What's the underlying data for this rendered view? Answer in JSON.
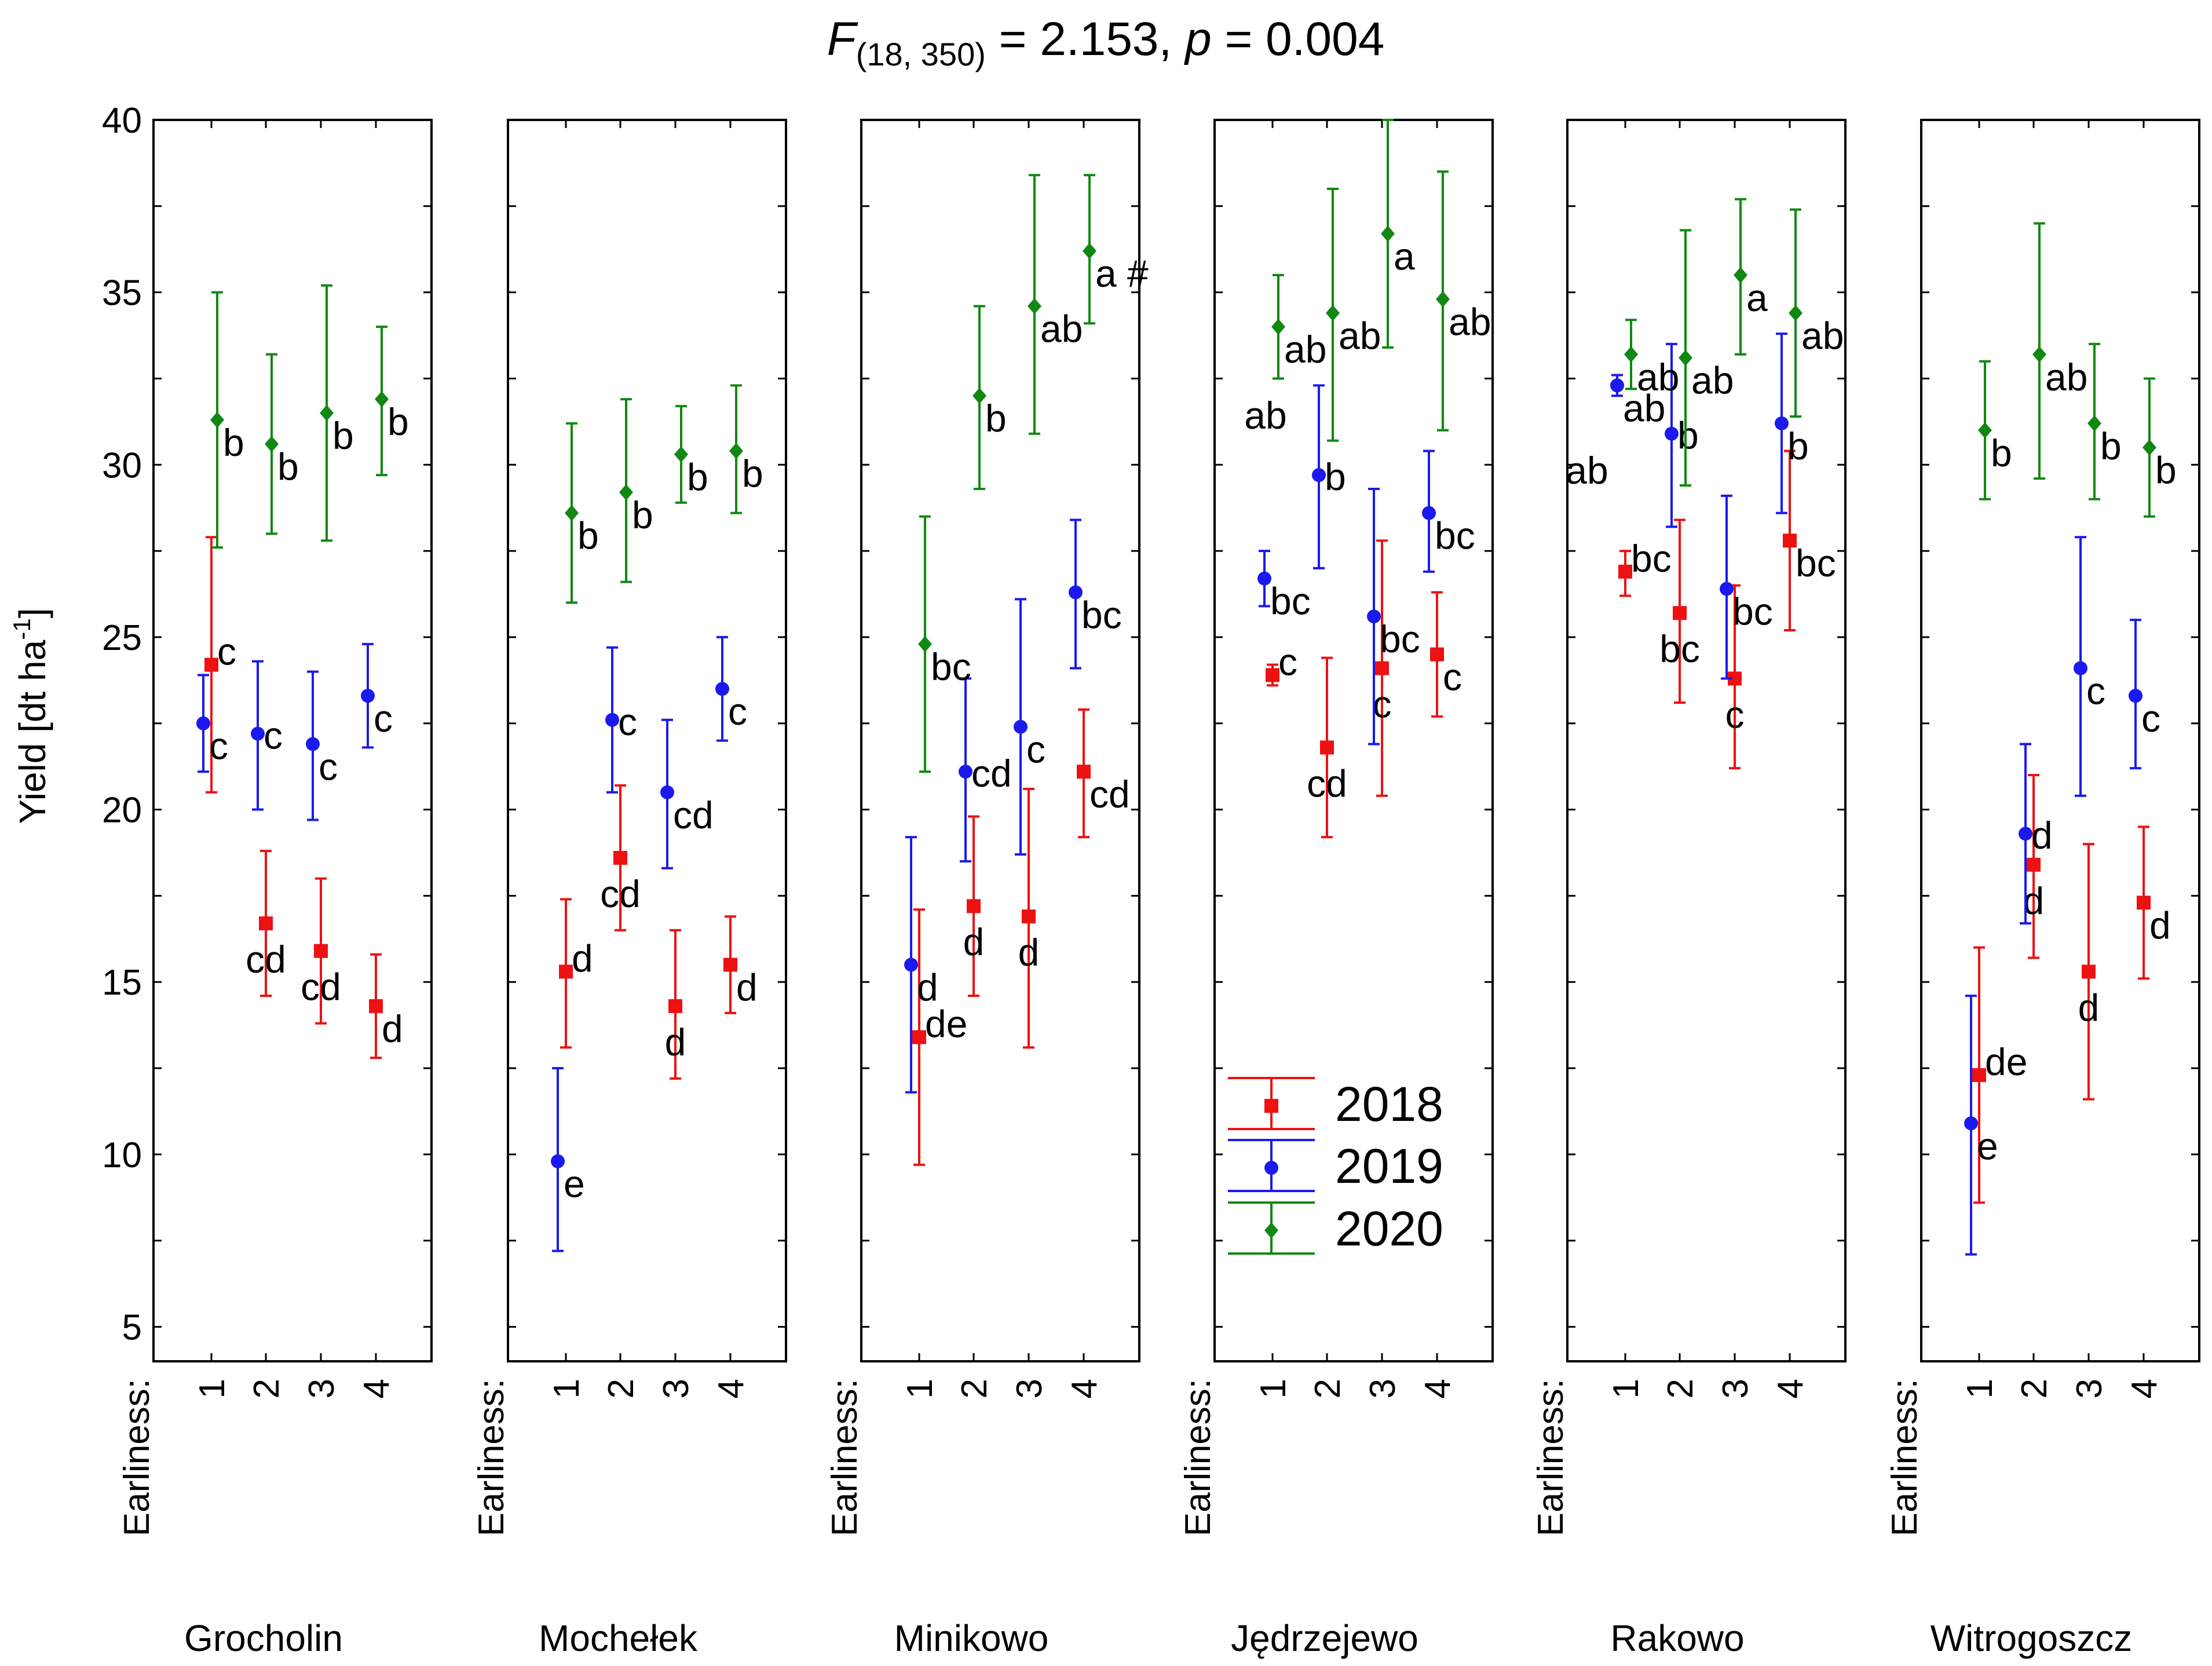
{
  "title": {
    "prefix": "F",
    "sub": "(18, 350)",
    "mid": " = 2.153, ",
    "p": "p",
    "suffix": " = 0.004"
  },
  "y_axis": {
    "label_main": "Yield [dt ha",
    "label_sup": "-1",
    "label_end": "]",
    "ticks": [
      "5",
      "10",
      "15",
      "20",
      "25",
      "30",
      "35",
      "40"
    ]
  },
  "x_axis": {
    "prefix": "Earliness:",
    "categories": [
      "1",
      "2",
      "3",
      "4"
    ]
  },
  "colors": {
    "2018": "#ee1111",
    "2019": "#1a1aee",
    "2020": "#118811"
  },
  "legend": {
    "position": "inside Jędrzejewo panel, bottom-left",
    "items": [
      {
        "year": "2018",
        "marker": "square"
      },
      {
        "year": "2019",
        "marker": "circle"
      },
      {
        "year": "2020",
        "marker": "diamond"
      }
    ]
  },
  "chart_data": {
    "type": "scatter",
    "title": "F(18, 350) = 2.153, p = 0.004",
    "ylabel": "Yield [dt ha-1]",
    "xlabel": "Earliness:",
    "ylim": [
      4,
      40
    ],
    "categories": [
      "1",
      "2",
      "3",
      "4"
    ],
    "grid": false,
    "panels": [
      {
        "site": "Grocholin",
        "series": [
          {
            "name": "2018",
            "values": [
              24.2,
              16.7,
              15.9,
              14.3
            ],
            "lower": [
              20.5,
              14.6,
              13.8,
              12.8
            ],
            "upper": [
              27.9,
              18.8,
              18.0,
              15.8
            ],
            "letters": [
              "c",
              "cd",
              "cd",
              "d"
            ]
          },
          {
            "name": "2019",
            "values": [
              22.5,
              22.2,
              21.9,
              23.3
            ],
            "lower": [
              21.1,
              20.0,
              19.7,
              21.8
            ],
            "upper": [
              23.9,
              24.3,
              24.0,
              24.8
            ],
            "letters": [
              "c",
              "c",
              "c",
              "c"
            ]
          },
          {
            "name": "2020",
            "values": [
              31.3,
              30.6,
              31.5,
              31.9
            ],
            "lower": [
              27.6,
              28.0,
              27.8,
              29.7
            ],
            "upper": [
              35.0,
              33.2,
              35.2,
              34.0
            ],
            "letters": [
              "b",
              "b",
              "b",
              "b"
            ]
          }
        ]
      },
      {
        "site": "Mochełek",
        "series": [
          {
            "name": "2018",
            "values": [
              15.3,
              18.6,
              14.3,
              15.5
            ],
            "lower": [
              13.1,
              16.5,
              12.2,
              14.1
            ],
            "upper": [
              17.4,
              20.7,
              16.5,
              16.9
            ],
            "letters": [
              "d",
              "cd",
              "d",
              "d"
            ]
          },
          {
            "name": "2019",
            "values": [
              9.8,
              22.6,
              20.5,
              23.5
            ],
            "lower": [
              7.2,
              20.5,
              18.3,
              22.0
            ],
            "upper": [
              12.5,
              24.7,
              22.6,
              25.0
            ],
            "letters": [
              "e",
              "c",
              "cd",
              "c"
            ]
          },
          {
            "name": "2020",
            "values": [
              28.6,
              29.2,
              30.3,
              30.4
            ],
            "lower": [
              26.0,
              26.6,
              28.9,
              28.6
            ],
            "upper": [
              31.2,
              31.9,
              31.7,
              32.3
            ],
            "letters": [
              "b",
              "b",
              "b",
              "b"
            ]
          }
        ]
      },
      {
        "site": "Minikowo",
        "series": [
          {
            "name": "2018",
            "values": [
              13.4,
              17.2,
              16.9,
              21.1
            ],
            "lower": [
              9.7,
              14.6,
              13.1,
              19.2
            ],
            "upper": [
              17.1,
              19.8,
              20.6,
              22.9
            ],
            "letters": [
              "de",
              "d",
              "d",
              "cd"
            ]
          },
          {
            "name": "2019",
            "values": [
              15.5,
              21.1,
              22.4,
              26.3
            ],
            "lower": [
              11.8,
              18.5,
              18.7,
              24.1
            ],
            "upper": [
              19.2,
              23.8,
              26.1,
              28.4
            ],
            "letters": [
              "d",
              "cd",
              "c",
              "bc"
            ]
          },
          {
            "name": "2020",
            "values": [
              24.8,
              32.0,
              34.6,
              36.2
            ],
            "lower": [
              21.1,
              29.3,
              30.9,
              34.1
            ],
            "upper": [
              28.5,
              34.6,
              38.4,
              38.4
            ],
            "letters": [
              "bc",
              "b",
              "ab",
              "a #"
            ]
          }
        ]
      },
      {
        "site": "Jędrzejewo",
        "series": [
          {
            "name": "2018",
            "values": [
              23.9,
              21.8,
              24.1,
              24.5
            ],
            "lower": [
              23.6,
              19.2,
              20.4,
              22.7
            ],
            "upper": [
              24.2,
              24.4,
              27.8,
              26.3
            ],
            "letters": [
              "c",
              "cd",
              "c",
              "c"
            ]
          },
          {
            "name": "2019",
            "values": [
              26.7,
              29.7,
              25.6,
              28.6
            ],
            "lower": [
              25.9,
              27.0,
              21.9,
              26.9
            ],
            "upper": [
              27.5,
              32.3,
              29.3,
              30.4
            ],
            "letters": [
              "bc",
              "b",
              "bc",
              "bc"
            ]
          },
          {
            "name": "2020",
            "values": [
              34.0,
              34.4,
              36.7,
              34.8
            ],
            "lower": [
              32.5,
              30.7,
              33.4,
              31.0
            ],
            "upper": [
              35.5,
              38.0,
              40.0,
              38.5
            ],
            "letters": [
              "ab",
              "ab",
              "a",
              "ab"
            ]
          }
        ]
      },
      {
        "site": "Rakowo",
        "series": [
          {
            "name": "2018",
            "values": [
              26.9,
              25.7,
              23.8,
              27.8
            ],
            "lower": [
              26.2,
              23.1,
              21.2,
              25.2
            ],
            "upper": [
              27.5,
              28.4,
              26.5,
              30.4
            ],
            "letters": [
              "bc",
              "bc",
              "c",
              "bc"
            ]
          },
          {
            "name": "2019",
            "values": [
              32.3,
              30.9,
              26.4,
              31.2
            ],
            "lower": [
              32.0,
              28.2,
              23.8,
              28.6
            ],
            "upper": [
              32.6,
              33.5,
              29.1,
              33.8
            ],
            "letters": [
              "ab",
              "b",
              "bc",
              "b"
            ]
          },
          {
            "name": "2020",
            "values": [
              33.2,
              33.1,
              35.5,
              34.4
            ],
            "lower": [
              32.2,
              29.4,
              33.2,
              31.4
            ],
            "upper": [
              34.2,
              36.8,
              37.7,
              37.4
            ],
            "letters": [
              "ab",
              "ab",
              "a",
              "ab"
            ]
          }
        ]
      },
      {
        "site": "Witrogoszcz",
        "series": [
          {
            "name": "2018",
            "values": [
              12.3,
              18.4,
              15.3,
              17.3
            ],
            "lower": [
              8.6,
              15.7,
              11.6,
              15.1
            ],
            "upper": [
              16.0,
              21.0,
              19.0,
              19.5
            ],
            "letters": [
              "de",
              "d",
              "d",
              "d"
            ]
          },
          {
            "name": "2019",
            "values": [
              10.9,
              19.3,
              24.1,
              23.3
            ],
            "lower": [
              7.1,
              16.7,
              20.4,
              21.2
            ],
            "upper": [
              14.6,
              21.9,
              27.9,
              25.5
            ],
            "letters": [
              "e",
              "d",
              "c",
              "c"
            ]
          },
          {
            "name": "2020",
            "values": [
              31.0,
              33.2,
              31.2,
              30.5
            ],
            "lower": [
              29.0,
              29.6,
              29.0,
              28.5
            ],
            "upper": [
              33.0,
              37.0,
              33.5,
              32.5
            ],
            "letters": [
              "b",
              "ab",
              "b",
              "b"
            ]
          }
        ]
      }
    ],
    "extra_annotations": [
      {
        "panel": "Jędrzejewo",
        "text": "ab",
        "note": "free label near Earliness 1"
      },
      {
        "panel": "Rakowo",
        "text": "ab",
        "note": "free label near Earliness 1"
      }
    ]
  }
}
